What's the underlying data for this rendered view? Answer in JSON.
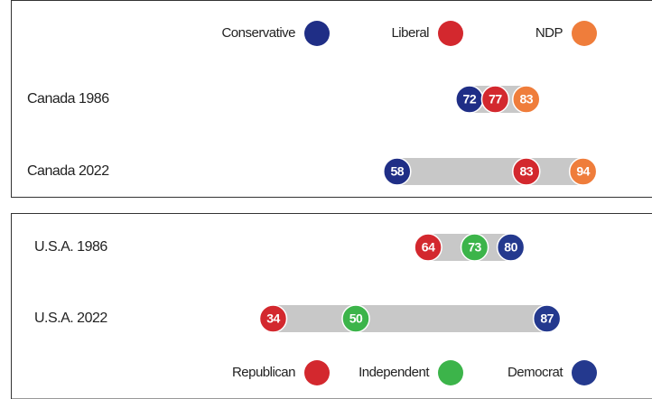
{
  "chart_data": [
    {
      "type": "dot",
      "categories": [
        "Canada 1986",
        "Canada 2022"
      ],
      "series": [
        {
          "name": "Conservative",
          "color": "#1f2e86",
          "values": [
            72,
            58
          ]
        },
        {
          "name": "Liberal",
          "color": "#d3282e",
          "values": [
            77,
            83
          ]
        },
        {
          "name": "NDP",
          "color": "#ef7d3b",
          "values": [
            83,
            94
          ]
        }
      ],
      "xlim": [
        0,
        100
      ],
      "legend": "top"
    },
    {
      "type": "dot",
      "categories": [
        "U.S.A. 1986",
        "U.S.A. 2022"
      ],
      "series": [
        {
          "name": "Republican",
          "color": "#d3282e",
          "values": [
            64,
            34
          ]
        },
        {
          "name": "Independent",
          "color": "#3cb44a",
          "values": [
            73,
            50
          ]
        },
        {
          "name": "Democrat",
          "color": "#24398e",
          "values": [
            80,
            87
          ]
        }
      ],
      "xlim": [
        0,
        100
      ],
      "legend": "bottom"
    }
  ]
}
